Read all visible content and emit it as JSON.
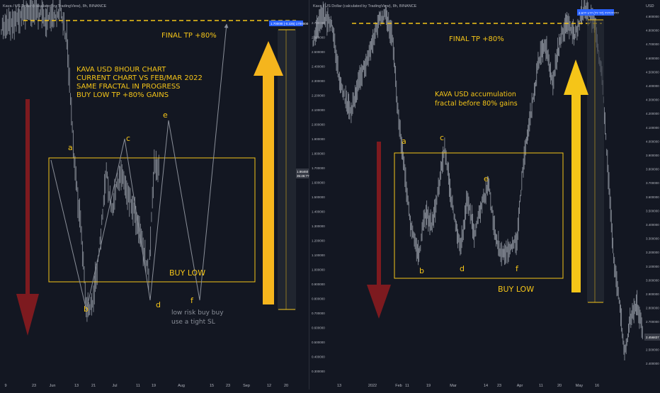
{
  "chart_data": [
    {
      "type": "line",
      "header": "Kava / US Dollar (calculated by TradingView), 8h, BINANCE",
      "ylabel": "",
      "yaxis_unit": "",
      "x_ticks": [
        "9",
        "23",
        "Jun",
        "13",
        "21",
        "Jul",
        "11",
        "19",
        "Aug",
        "15",
        "23",
        "Sep",
        "12",
        "20"
      ],
      "y_ticks": [],
      "last_price_tags": [
        "1.86460",
        "35:46:??"
      ],
      "target_box_label": "1.70000t (-0.225) 1700000",
      "annotations": {
        "title_lines": [
          "KAVA USD 8HOUR CHART",
          "CURRENT CHART VS FEB/MAR 2022",
          "SAME FRACTAL IN PROGRESS",
          "BUY LOW TP +80% GAINS"
        ],
        "final_tp": "FINAL TP +80%",
        "buy_low": "BUY LOW",
        "note_lines": [
          "low risk buy buy",
          "use a tight SL"
        ],
        "wave_labels": [
          "a",
          "b",
          "c",
          "d",
          "e",
          "f"
        ]
      },
      "colors": {
        "background": "#131722",
        "annotation": "#f5c518",
        "drop_arrow": "#7d1a1f",
        "tp_arrow": "#f5b51d",
        "candles": "#9aa0aa"
      }
    },
    {
      "type": "line",
      "header": "Kava / US Dollar (calculated by TradingView), 8h, BINANCE",
      "ylabel": "USD",
      "x_ticks": [
        "13",
        "2022",
        "Feb",
        "11",
        "19",
        "Mar",
        "14",
        "23",
        "Apr",
        "11",
        "20",
        "May",
        "16"
      ],
      "y_ticks": [
        "2.700000",
        "2.600000",
        "2.500000",
        "2.400000",
        "2.300000",
        "2.200000",
        "2.100000",
        "2.000000",
        "1.900000",
        "1.800000",
        "1.700000",
        "1.600000",
        "1.500000",
        "1.400000",
        "1.300000",
        "1.200000",
        "1.100000",
        "1.000000",
        "0.900000",
        "0.800000",
        "0.700000",
        "0.600000",
        "0.500000",
        "0.400000",
        "0.300000",
        "0.200000"
      ],
      "right_y_ticks": [
        "4.900000",
        "4.800000",
        "4.700000",
        "4.600000",
        "4.500000",
        "4.400000",
        "4.300000",
        "4.200000",
        "4.100000",
        "4.000000",
        "3.900000",
        "3.800000",
        "3.700000",
        "3.600000",
        "3.500000",
        "3.400000",
        "3.300000",
        "3.200000",
        "3.100000",
        "3.000000",
        "2.900000",
        "2.800000",
        "2.700000",
        "2.600000",
        "2.500000",
        "2.400000",
        "2.300000"
      ],
      "last_price_tag": "2.456837",
      "target_box_label": "2.5?? 1?? (?? ??) ????????",
      "annotations": {
        "accumulation_lines": [
          "KAVA USD accumulation",
          "fractal before 80% gains"
        ],
        "final_tp": "FINAL TP +80%",
        "buy_low": "BUY LOW",
        "wave_labels": [
          "a",
          "b",
          "c",
          "d",
          "e",
          "f"
        ]
      },
      "colors": {
        "background": "#131722",
        "annotation": "#f5c518",
        "drop_arrow": "#7d1a1f",
        "tp_arrow": "#f5c518",
        "candles": "#9aa0aa",
        "price_tag": "#2962ff"
      }
    }
  ]
}
